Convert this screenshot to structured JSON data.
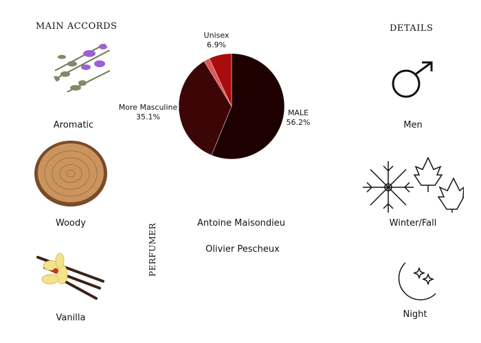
{
  "accords": {
    "title": "MAIN ACCORDS",
    "items": [
      {
        "label": "Aromatic",
        "icon": "lavender-sage-image"
      },
      {
        "label": "Woody",
        "icon": "wood-slice-image"
      },
      {
        "label": "Vanilla",
        "icon": "vanilla-flower-image"
      }
    ]
  },
  "chart_data": {
    "type": "pie",
    "slices": [
      {
        "name": "MALE",
        "value": 56.2,
        "label": "56.2%",
        "color": "#1e0000"
      },
      {
        "name": "More Masculine",
        "value": 35.1,
        "label": "35.1%",
        "color": "#3d0606"
      },
      {
        "name": "",
        "value": 1.8,
        "label": "",
        "color": "#e05555"
      },
      {
        "name": "Unisex",
        "value": 6.9,
        "label": "6.9%",
        "color": "#a80c0c"
      }
    ]
  },
  "perfumer": {
    "title": "PERFUMER",
    "names": [
      "Antoine Maisondieu",
      "Olivier Pescheux"
    ]
  },
  "details": {
    "title": "DETAILS",
    "items": [
      {
        "label": "Men",
        "icon": "male-symbol-icon"
      },
      {
        "label": "Winter/Fall",
        "icon": "snowflake-leaves-icon"
      },
      {
        "label": "Night",
        "icon": "moon-stars-icon"
      }
    ]
  }
}
